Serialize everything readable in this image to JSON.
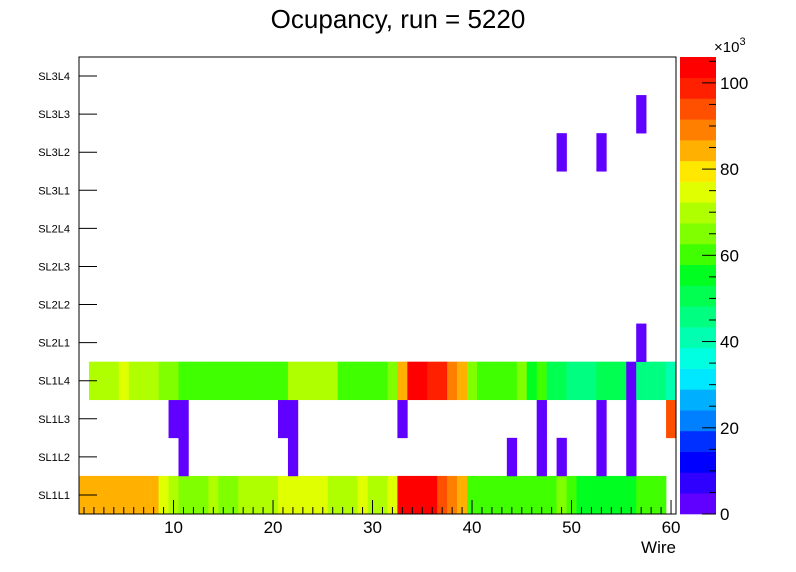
{
  "chart_data": {
    "type": "heatmap",
    "title": "Ocupancy, run = 5220",
    "xlabel": "Wire",
    "xlim": [
      0.5,
      60.5
    ],
    "x_ticks": [
      10,
      20,
      30,
      40,
      50,
      60
    ],
    "layers": [
      "SL1L1",
      "SL1L2",
      "SL1L3",
      "SL1L4",
      "SL2L1",
      "SL2L2",
      "SL2L3",
      "SL2L4",
      "SL3L1",
      "SL3L2",
      "SL3L3",
      "SL3L4"
    ],
    "z_exponent_label": "×10",
    "z_exponent_power": "3",
    "z_range": [
      0,
      106
    ],
    "z_ticks": [
      0,
      20,
      40,
      60,
      80,
      100
    ],
    "palette": [
      "#6000ff",
      "#3000ff",
      "#0000ff",
      "#0030ff",
      "#0080ff",
      "#00b0ff",
      "#00e8ff",
      "#00ffe0",
      "#00ffb0",
      "#00ff80",
      "#00ff50",
      "#00ff20",
      "#40ff00",
      "#80ff00",
      "#b0ff00",
      "#e0ff00",
      "#ffe800",
      "#ffb000",
      "#ff8000",
      "#ff5000",
      "#ff2000",
      "#ff0000"
    ],
    "occupancy": {
      "SL1L1": [
        [
          1,
          84
        ],
        [
          2,
          84
        ],
        [
          3,
          84
        ],
        [
          4,
          84
        ],
        [
          5,
          84
        ],
        [
          6,
          84
        ],
        [
          7,
          84
        ],
        [
          8,
          84
        ],
        [
          9,
          74
        ],
        [
          10,
          69
        ],
        [
          11,
          63
        ],
        [
          12,
          63
        ],
        [
          13,
          63
        ],
        [
          14,
          68
        ],
        [
          15,
          63
        ],
        [
          16,
          63
        ],
        [
          17,
          69
        ],
        [
          18,
          69
        ],
        [
          19,
          69
        ],
        [
          20,
          72
        ],
        [
          21,
          75
        ],
        [
          22,
          75
        ],
        [
          23,
          75
        ],
        [
          24,
          75
        ],
        [
          25,
          75
        ],
        [
          26,
          70
        ],
        [
          27,
          70
        ],
        [
          28,
          70
        ],
        [
          29,
          75
        ],
        [
          30,
          70
        ],
        [
          31,
          70
        ],
        [
          32,
          76
        ],
        [
          33,
          104
        ],
        [
          34,
          104
        ],
        [
          35,
          104
        ],
        [
          36,
          104
        ],
        [
          37,
          95
        ],
        [
          38,
          91
        ],
        [
          39,
          82
        ],
        [
          40,
          62
        ],
        [
          41,
          62
        ],
        [
          42,
          62
        ],
        [
          43,
          62
        ],
        [
          44,
          59
        ],
        [
          45,
          59
        ],
        [
          46,
          59
        ],
        [
          47,
          59
        ],
        [
          48,
          59
        ],
        [
          49,
          65
        ],
        [
          50,
          58
        ],
        [
          51,
          54
        ],
        [
          52,
          54
        ],
        [
          53,
          54
        ],
        [
          54,
          54
        ],
        [
          55,
          54
        ],
        [
          56,
          54
        ],
        [
          57,
          62
        ],
        [
          58,
          62
        ],
        [
          59,
          62
        ]
      ],
      "SL1L2": [
        [
          11,
          2
        ],
        [
          22,
          2
        ],
        [
          44,
          2
        ],
        [
          47,
          2
        ],
        [
          49,
          2
        ],
        [
          53,
          2
        ],
        [
          56,
          2
        ]
      ],
      "SL1L3": [
        [
          10,
          2
        ],
        [
          11,
          2
        ],
        [
          21,
          2
        ],
        [
          22,
          2
        ],
        [
          33,
          2
        ],
        [
          47,
          2
        ],
        [
          53,
          2
        ],
        [
          56,
          2
        ],
        [
          60,
          93
        ]
      ],
      "SL1L4": [
        [
          2,
          70
        ],
        [
          3,
          70
        ],
        [
          4,
          70
        ],
        [
          5,
          74
        ],
        [
          6,
          70
        ],
        [
          7,
          70
        ],
        [
          8,
          70
        ],
        [
          9,
          67
        ],
        [
          10,
          67
        ],
        [
          11,
          62
        ],
        [
          12,
          62
        ],
        [
          13,
          59
        ],
        [
          14,
          59
        ],
        [
          15,
          59
        ],
        [
          16,
          59
        ],
        [
          17,
          62
        ],
        [
          18,
          62
        ],
        [
          19,
          62
        ],
        [
          20,
          59
        ],
        [
          21,
          59
        ],
        [
          22,
          69
        ],
        [
          23,
          69
        ],
        [
          24,
          69
        ],
        [
          25,
          69
        ],
        [
          26,
          69
        ],
        [
          27,
          62
        ],
        [
          28,
          62
        ],
        [
          29,
          62
        ],
        [
          30,
          62
        ],
        [
          31,
          62
        ],
        [
          32,
          66
        ],
        [
          33,
          82
        ],
        [
          34,
          104
        ],
        [
          35,
          104
        ],
        [
          36,
          100
        ],
        [
          37,
          100
        ],
        [
          38,
          91
        ],
        [
          39,
          84
        ],
        [
          40,
          66
        ],
        [
          41,
          60
        ],
        [
          42,
          60
        ],
        [
          43,
          60
        ],
        [
          44,
          60
        ],
        [
          45,
          64
        ],
        [
          46,
          55
        ],
        [
          47,
          60
        ],
        [
          48,
          50
        ],
        [
          49,
          50
        ],
        [
          50,
          46
        ],
        [
          51,
          46
        ],
        [
          52,
          46
        ],
        [
          53,
          50
        ],
        [
          54,
          50
        ],
        [
          55,
          50
        ],
        [
          56,
          2
        ],
        [
          57,
          45
        ],
        [
          58,
          45
        ],
        [
          59,
          45
        ],
        [
          60,
          42
        ]
      ],
      "SL2L1": [
        [
          57,
          2
        ]
      ],
      "SL3L2": [
        [
          49,
          2
        ],
        [
          53,
          2
        ]
      ],
      "SL3L3": [
        [
          57,
          2
        ]
      ]
    }
  }
}
